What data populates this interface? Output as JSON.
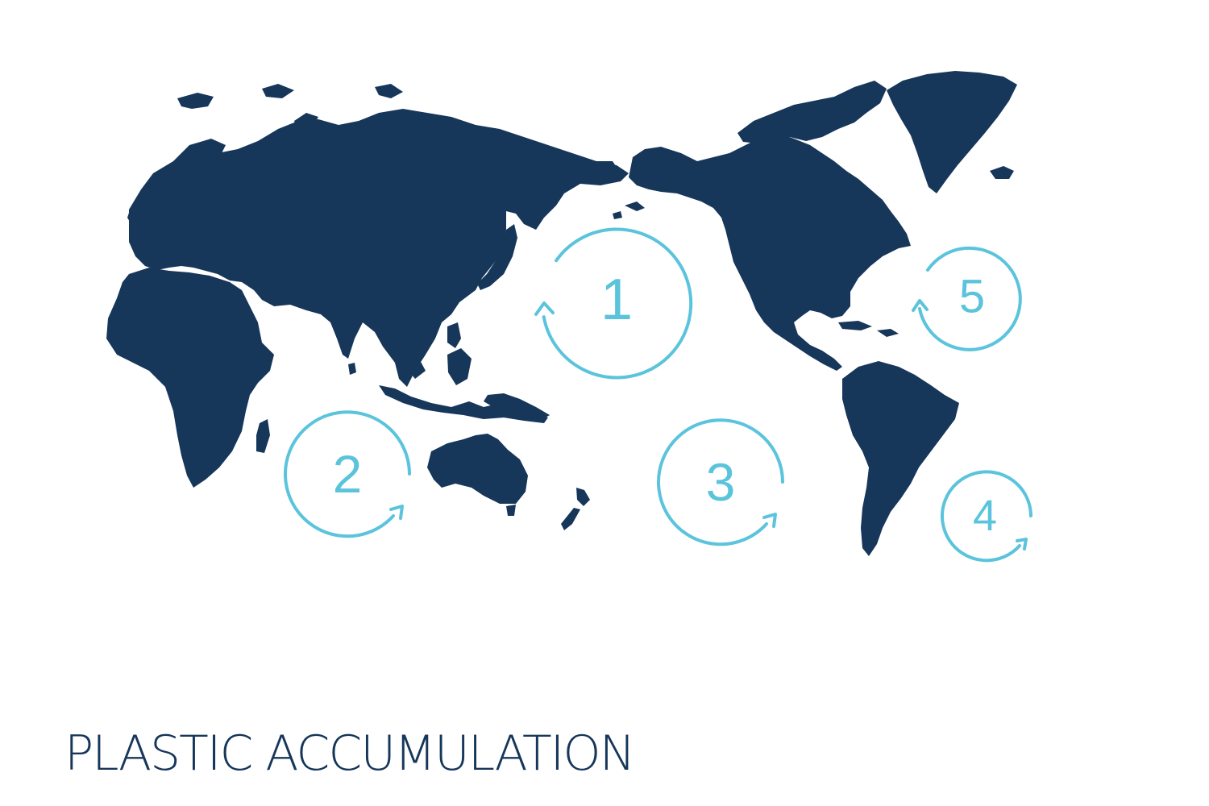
{
  "title": "PLASTIC ACCUMULATION",
  "colors": {
    "land": "#16365a",
    "gyre": "#5bc4dc",
    "title": "#16365a",
    "background": "#ffffff"
  },
  "map": {
    "projection": "pacific-centered world map",
    "continents": [
      "Europe",
      "Asia",
      "Africa",
      "Australia",
      "New Zealand",
      "North America",
      "Greenland",
      "South America"
    ]
  },
  "gyres": [
    {
      "number": "1",
      "direction": "counterclockwise-arrow"
    },
    {
      "number": "2",
      "direction": "clockwise-arrow"
    },
    {
      "number": "3",
      "direction": "clockwise-arrow"
    },
    {
      "number": "4",
      "direction": "clockwise-arrow"
    },
    {
      "number": "5",
      "direction": "counterclockwise-arrow"
    }
  ]
}
